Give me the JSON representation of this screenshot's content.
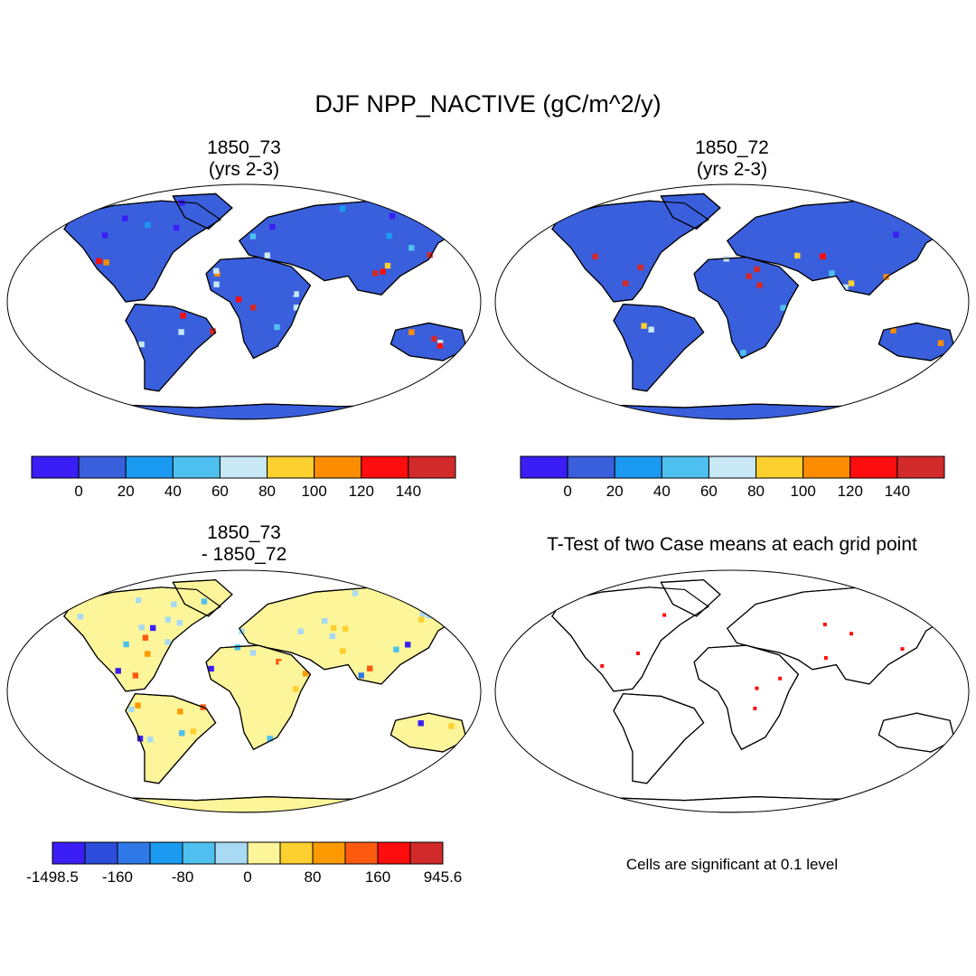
{
  "title": "DJF NPP_NACTIVE (gC/m^2/y)",
  "panels": [
    {
      "id": "p1",
      "title_line1": "1850_73",
      "title_line2": "(yrs 2-3)",
      "style": "abs1"
    },
    {
      "id": "p2",
      "title_line1": "1850_72",
      "title_line2": "(yrs 2-3)",
      "style": "abs2"
    },
    {
      "id": "p3",
      "title_line1": "1850_73",
      "title_line2": "- 1850_72",
      "style": "diff"
    },
    {
      "id": "p4",
      "title": "T-Test of two Case means at each grid point",
      "style": "ttest"
    }
  ],
  "colorbars": {
    "abs": {
      "colors": [
        "#3a1ef5",
        "#3a5fdc",
        "#1a9af0",
        "#4ec0ef",
        "#c8e8f6",
        "#fdd030",
        "#fd8c00",
        "#fd0d0d",
        "#d22a2a"
      ],
      "labels": [
        "0",
        "20",
        "40",
        "60",
        "80",
        "100",
        "120",
        "140"
      ]
    },
    "diff": {
      "colors": [
        "#3a1ef5",
        "#2c4cdc",
        "#2f78e8",
        "#1a9af0",
        "#4ec0ef",
        "#a8daf3",
        "#fdf59a",
        "#fdd030",
        "#fd9a00",
        "#fd5a10",
        "#fd0d0d",
        "#d22a2a"
      ],
      "labels": [
        "-1498.5",
        "-160",
        "-80",
        "0",
        "80",
        "160",
        "945.6"
      ]
    }
  },
  "note": "Cells are significant at 0.1 level",
  "colors": {
    "land_low": "#3a5fdc",
    "land_high": "#d22a2a",
    "diff_base": "#fdf59a",
    "signif": "#fd0d0d",
    "antarctica_abs": "#3a5fdc",
    "antarctica_diff": "#fdf59a"
  }
}
